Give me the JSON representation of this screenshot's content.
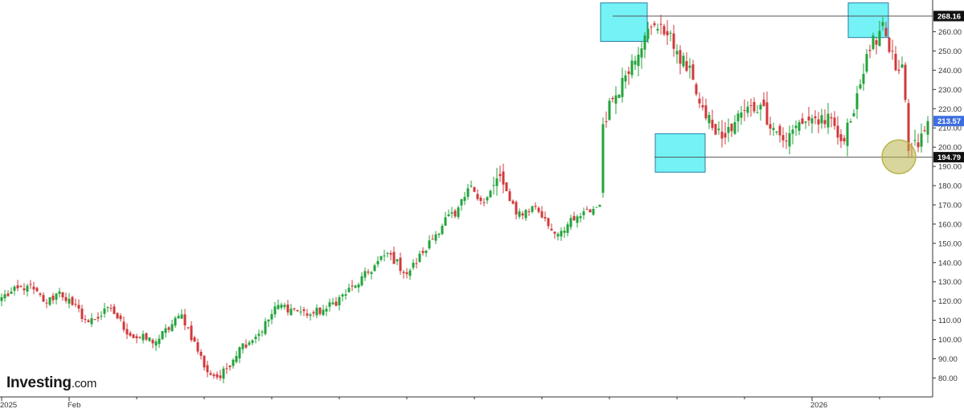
{
  "brand": {
    "name": "Investing",
    "suffix": ".com"
  },
  "colors": {
    "up": "#23a33b",
    "down": "#d0393b",
    "level_line": "#555555",
    "pattern_box": "#5cf0f5",
    "pattern_box_stroke": "#2a7fa6",
    "circle": "#b8b54a",
    "last_price_bg": "#3d6fe0",
    "level_label_bg": "#111111",
    "axis": "#333333",
    "tick_text": "#333333"
  },
  "chart_data": {
    "type": "candlestick",
    "title": "",
    "xlabel": "",
    "ylabel": "",
    "ylim": [
      76,
      274
    ],
    "y_ticks": [
      "80.00",
      "90.00",
      "100.00",
      "110.00",
      "120.00",
      "130.00",
      "140.00",
      "150.00",
      "160.00",
      "170.00",
      "180.00",
      "190.00",
      "200.00",
      "210.00",
      "220.00",
      "230.00",
      "240.00",
      "250.00",
      "260.00"
    ],
    "x_tick_labels": [
      {
        "label": "2025",
        "bar": 0
      },
      {
        "label": "Feb",
        "bar": 21
      },
      {
        "label": "2026",
        "bar": 252
      }
    ],
    "grid": false,
    "resistance_level": {
      "value": 268.16,
      "label": "268.16",
      "from_bar": 190
    },
    "support_level": {
      "value": 194.79,
      "label": "194.79",
      "from_bar": 203
    },
    "last_price": {
      "value": 213.57,
      "label": "213.57"
    },
    "highlight_boxes": [
      {
        "bar_from": 187,
        "bar_to": 200,
        "value_low": 255,
        "value_high": 275
      },
      {
        "bar_from": 204,
        "bar_to": 218,
        "value_low": 187,
        "value_high": 207
      },
      {
        "bar_from": 264,
        "bar_to": 275,
        "value_low": 257,
        "value_high": 275
      }
    ],
    "highlight_circle": {
      "bar": 278,
      "value": 195
    },
    "series": [
      {
        "name": "",
        "anchors": [
          [
            0,
            122
          ],
          [
            8,
            128
          ],
          [
            14,
            119
          ],
          [
            18,
            125
          ],
          [
            22,
            118
          ],
          [
            27,
            109
          ],
          [
            34,
            116
          ],
          [
            40,
            102
          ],
          [
            48,
            99
          ],
          [
            56,
            113
          ],
          [
            64,
            83
          ],
          [
            68,
            80
          ],
          [
            74,
            96
          ],
          [
            80,
            103
          ],
          [
            86,
            118
          ],
          [
            90,
            116
          ],
          [
            96,
            113
          ],
          [
            101,
            116
          ],
          [
            110,
            128
          ],
          [
            120,
            145
          ],
          [
            126,
            134
          ],
          [
            131,
            145
          ],
          [
            139,
            165
          ],
          [
            141,
            164
          ],
          [
            146,
            180
          ],
          [
            150,
            171
          ],
          [
            155,
            185
          ],
          [
            158,
            172
          ],
          [
            160,
            165
          ],
          [
            166,
            169
          ],
          [
            172,
            155
          ],
          [
            178,
            162
          ],
          [
            186,
            170
          ],
          [
            187,
            212
          ],
          [
            190,
            225
          ],
          [
            196,
            245
          ],
          [
            200,
            258
          ],
          [
            205,
            264
          ],
          [
            210,
            250
          ],
          [
            215,
            235
          ],
          [
            219,
            215
          ],
          [
            221,
            210
          ],
          [
            225,
            205
          ],
          [
            230,
            218
          ],
          [
            236,
            222
          ],
          [
            240,
            210
          ],
          [
            244,
            203
          ],
          [
            248,
            213
          ],
          [
            252,
            215
          ],
          [
            256,
            212
          ],
          [
            258,
            215
          ],
          [
            260,
            205
          ],
          [
            262,
            203
          ],
          [
            266,
            228
          ],
          [
            270,
            250
          ],
          [
            274,
            265
          ],
          [
            278,
            240
          ],
          [
            280,
            243
          ],
          [
            282,
            198
          ],
          [
            285,
            200
          ],
          [
            288,
            213.57
          ]
        ]
      }
    ],
    "gaps": [
      186
    ]
  }
}
